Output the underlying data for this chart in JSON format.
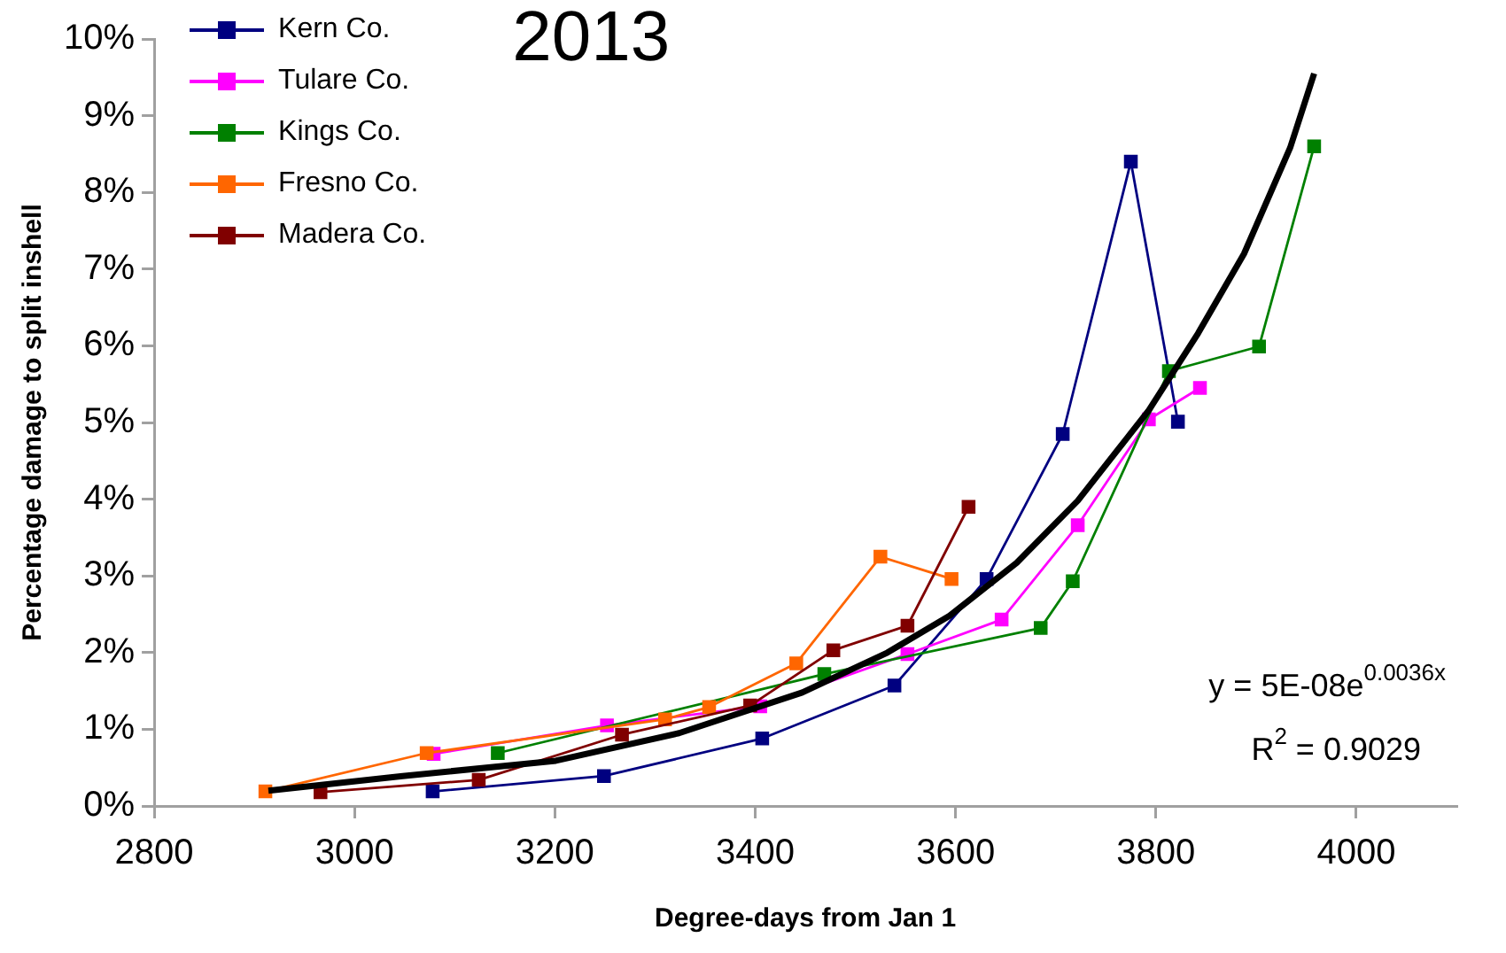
{
  "chart_data": {
    "type": "line",
    "title": "2013",
    "xlabel": "Degree-days from Jan 1",
    "ylabel": "Percentage damage to split inshell",
    "xlim": [
      2800,
      4100
    ],
    "xticks": [
      2800,
      3000,
      3200,
      3400,
      3600,
      3800,
      4000
    ],
    "ylim": [
      0,
      10
    ],
    "yticks": [
      {
        "value": 0,
        "label": "0%"
      },
      {
        "value": 1,
        "label": "1%"
      },
      {
        "value": 2,
        "label": "2%"
      },
      {
        "value": 3,
        "label": "3%"
      },
      {
        "value": 4,
        "label": "4%"
      },
      {
        "value": 5,
        "label": "5%"
      },
      {
        "value": 6,
        "label": "6%"
      },
      {
        "value": 7,
        "label": "7%"
      },
      {
        "value": 8,
        "label": "8%"
      },
      {
        "value": 9,
        "label": "9%"
      },
      {
        "value": 10,
        "label": "10%"
      }
    ],
    "grid": false,
    "legend": "top left",
    "marker": "square",
    "line_style": "solid",
    "series": [
      {
        "name": "Kern Co.",
        "color": "#000080",
        "x": [
          3078,
          3249,
          3407,
          3539,
          3631,
          3707,
          3775,
          3822
        ],
        "values": [
          0.19,
          0.39,
          0.88,
          1.57,
          2.96,
          4.85,
          8.4,
          5.01
        ]
      },
      {
        "name": "Tulare Co.",
        "color": "#ff00ff",
        "x": [
          3079,
          3252,
          3405,
          3552,
          3646,
          3722,
          3793,
          3844
        ],
        "values": [
          0.68,
          1.05,
          1.3,
          1.98,
          2.43,
          3.66,
          5.04,
          5.45
        ]
      },
      {
        "name": "Kings Co.",
        "color": "#008000",
        "x": [
          3143,
          3469,
          3685,
          3717,
          3813,
          3903,
          3958
        ],
        "values": [
          0.69,
          1.72,
          2.32,
          2.93,
          5.67,
          5.99,
          8.6
        ]
      },
      {
        "name": "Fresno Co.",
        "color": "#ff6600",
        "x": [
          2911,
          3072,
          3310,
          3354,
          3441,
          3525,
          3596
        ],
        "values": [
          0.19,
          0.69,
          1.13,
          1.29,
          1.86,
          3.25,
          2.96
        ]
      },
      {
        "name": "Madera Co.",
        "color": "#800000",
        "x": [
          2966,
          3124,
          3267,
          3395,
          3478,
          3552,
          3613
        ],
        "values": [
          0.18,
          0.34,
          0.93,
          1.31,
          2.03,
          2.35,
          3.9
        ]
      },
      {
        "color": "#000000",
        "marker": "none",
        "x": [
          2914,
          3048,
          3201,
          3324,
          3447,
          3532,
          3594,
          3661,
          3722,
          3793,
          3842,
          3888,
          3934,
          3958
        ],
        "values": [
          0.2,
          0.39,
          0.59,
          0.95,
          1.48,
          2.0,
          2.48,
          3.17,
          3.98,
          5.16,
          6.16,
          7.2,
          8.58,
          9.55
        ]
      }
    ],
    "annotations": [
      "y = 5E-08e$^{0.0036x}$",
      "R$^{2}$ = 0.9029"
    ]
  }
}
